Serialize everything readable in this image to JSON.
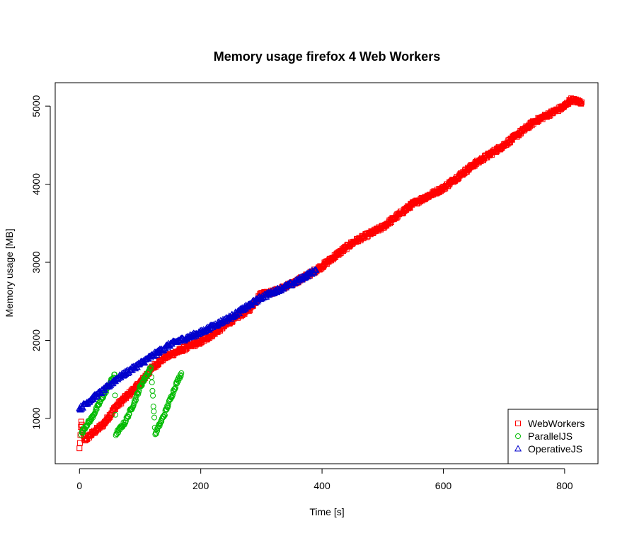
{
  "chart_data": {
    "type": "scatter",
    "title": "Memory usage firefox 4 Web Workers",
    "xlabel": "Time [s]",
    "ylabel": "Memory usage [MB]",
    "xlim": [
      -40,
      855
    ],
    "ylim": [
      420,
      5300
    ],
    "xticks": [
      0,
      200,
      400,
      600,
      800
    ],
    "yticks": [
      1000,
      2000,
      3000,
      4000,
      5000
    ],
    "grid": false,
    "legend_position": "bottom-right",
    "series": [
      {
        "name": "WebWorkers",
        "marker": "square",
        "color": "#ff0000",
        "anchors": [
          [
            0,
            610
          ],
          [
            3,
            950
          ],
          [
            8,
            720
          ],
          [
            20,
            800
          ],
          [
            40,
            930
          ],
          [
            60,
            1150
          ],
          [
            80,
            1300
          ],
          [
            100,
            1450
          ],
          [
            120,
            1650
          ],
          [
            140,
            1780
          ],
          [
            160,
            1850
          ],
          [
            180,
            1920
          ],
          [
            200,
            1980
          ],
          [
            220,
            2080
          ],
          [
            250,
            2250
          ],
          [
            280,
            2400
          ],
          [
            300,
            2600
          ],
          [
            320,
            2620
          ],
          [
            350,
            2720
          ],
          [
            380,
            2850
          ],
          [
            400,
            2950
          ],
          [
            450,
            3250
          ],
          [
            500,
            3450
          ],
          [
            550,
            3750
          ],
          [
            600,
            3950
          ],
          [
            650,
            4250
          ],
          [
            700,
            4500
          ],
          [
            750,
            4800
          ],
          [
            800,
            5000
          ],
          [
            810,
            5080
          ],
          [
            828,
            5050
          ]
        ]
      },
      {
        "name": "ParallelJS",
        "marker": "circle",
        "color": "#00bb00",
        "anchors": [
          [
            3,
            800
          ],
          [
            10,
            900
          ],
          [
            20,
            1000
          ],
          [
            30,
            1150
          ],
          [
            40,
            1300
          ],
          [
            50,
            1450
          ],
          [
            58,
            1550
          ],
          [
            60,
            800
          ],
          [
            75,
            950
          ],
          [
            90,
            1200
          ],
          [
            100,
            1400
          ],
          [
            110,
            1550
          ],
          [
            118,
            1650
          ],
          [
            125,
            800
          ],
          [
            140,
            1050
          ],
          [
            150,
            1250
          ],
          [
            160,
            1450
          ],
          [
            168,
            1580
          ]
        ]
      },
      {
        "name": "OperativeJS",
        "marker": "triangle",
        "color": "#0000cc",
        "anchors": [
          [
            0,
            1120
          ],
          [
            20,
            1250
          ],
          [
            40,
            1360
          ],
          [
            60,
            1500
          ],
          [
            80,
            1600
          ],
          [
            100,
            1700
          ],
          [
            130,
            1850
          ],
          [
            150,
            1950
          ],
          [
            200,
            2100
          ],
          [
            250,
            2300
          ],
          [
            300,
            2550
          ],
          [
            320,
            2620
          ],
          [
            350,
            2720
          ],
          [
            390,
            2900
          ]
        ]
      }
    ]
  }
}
